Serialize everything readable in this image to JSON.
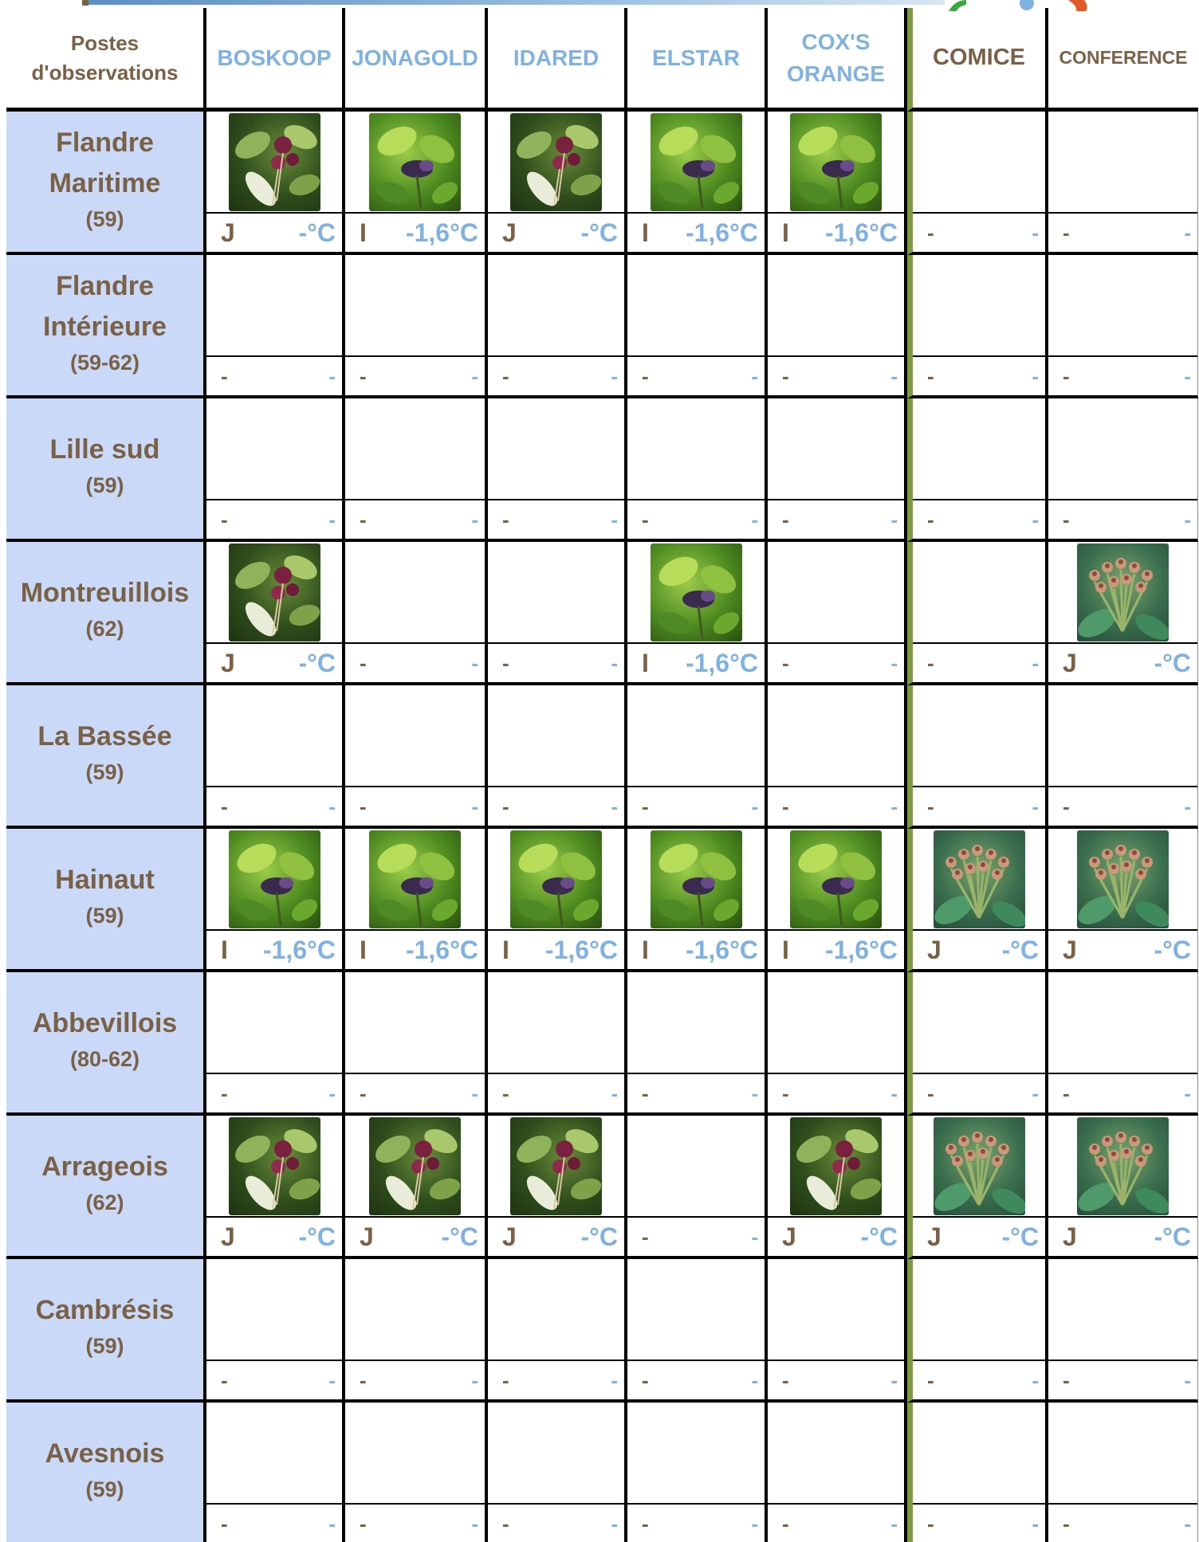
{
  "table": {
    "header": {
      "first": "Postes\nd'observations",
      "varieties": [
        {
          "label": "BOSKOOP",
          "kind": "apple"
        },
        {
          "label": "JONAGOLD",
          "kind": "apple"
        },
        {
          "label": "IDARED",
          "kind": "apple"
        },
        {
          "label": "ELSTAR",
          "kind": "apple"
        },
        {
          "label": "COX'S\nORANGE",
          "kind": "apple"
        },
        {
          "label": "COMICE",
          "kind": "pear"
        },
        {
          "label": "CONFERENCE",
          "kind": "pear"
        }
      ]
    },
    "rows": [
      {
        "name": "Flandre\nMaritime",
        "dept": "(59)",
        "cells": [
          {
            "photo": "apple-red-buds-photo",
            "stage": "J",
            "temp": "-°C"
          },
          {
            "photo": "apple-green-buds-photo",
            "stage": "I",
            "temp": "-1,6°C"
          },
          {
            "photo": "apple-red-buds-photo",
            "stage": "J",
            "temp": "-°C"
          },
          {
            "photo": "apple-green-buds-photo",
            "stage": "I",
            "temp": "-1,6°C"
          },
          {
            "photo": "apple-green-buds-photo",
            "stage": "I",
            "temp": "-1,6°C"
          },
          {
            "photo": "",
            "stage": "-",
            "temp": "-"
          },
          {
            "photo": "",
            "stage": "-",
            "temp": "-"
          }
        ]
      },
      {
        "name": "Flandre\nIntérieure",
        "dept": "(59-62)",
        "cells": [
          {
            "photo": "",
            "stage": "-",
            "temp": "-"
          },
          {
            "photo": "",
            "stage": "-",
            "temp": "-"
          },
          {
            "photo": "",
            "stage": "-",
            "temp": "-"
          },
          {
            "photo": "",
            "stage": "-",
            "temp": "-"
          },
          {
            "photo": "",
            "stage": "-",
            "temp": "-"
          },
          {
            "photo": "",
            "stage": "-",
            "temp": "-"
          },
          {
            "photo": "",
            "stage": "-",
            "temp": "-"
          }
        ]
      },
      {
        "name": "Lille sud",
        "dept": "(59)",
        "cells": [
          {
            "photo": "",
            "stage": "-",
            "temp": "-"
          },
          {
            "photo": "",
            "stage": "-",
            "temp": "-"
          },
          {
            "photo": "",
            "stage": "-",
            "temp": "-"
          },
          {
            "photo": "",
            "stage": "-",
            "temp": "-"
          },
          {
            "photo": "",
            "stage": "-",
            "temp": "-"
          },
          {
            "photo": "",
            "stage": "-",
            "temp": "-"
          },
          {
            "photo": "",
            "stage": "-",
            "temp": "-"
          }
        ]
      },
      {
        "name": "Montreuillois",
        "dept": "(62)",
        "cells": [
          {
            "photo": "apple-red-buds-photo",
            "stage": "J",
            "temp": "-°C"
          },
          {
            "photo": "",
            "stage": "-",
            "temp": "-"
          },
          {
            "photo": "",
            "stage": "-",
            "temp": "-"
          },
          {
            "photo": "apple-green-buds-photo",
            "stage": "I",
            "temp": "-1,6°C"
          },
          {
            "photo": "",
            "stage": "-",
            "temp": "-"
          },
          {
            "photo": "",
            "stage": "-",
            "temp": "-"
          },
          {
            "photo": "pear-buds-photo",
            "stage": "J",
            "temp": "-°C"
          }
        ]
      },
      {
        "name": "La Bassée",
        "dept": "(59)",
        "cells": [
          {
            "photo": "",
            "stage": "-",
            "temp": "-"
          },
          {
            "photo": "",
            "stage": "-",
            "temp": "-"
          },
          {
            "photo": "",
            "stage": "-",
            "temp": "-"
          },
          {
            "photo": "",
            "stage": "-",
            "temp": "-"
          },
          {
            "photo": "",
            "stage": "-",
            "temp": "-"
          },
          {
            "photo": "",
            "stage": "-",
            "temp": "-"
          },
          {
            "photo": "",
            "stage": "-",
            "temp": "-"
          }
        ]
      },
      {
        "name": "Hainaut",
        "dept": "(59)",
        "cells": [
          {
            "photo": "apple-green-buds-photo",
            "stage": "I",
            "temp": "-1,6°C"
          },
          {
            "photo": "apple-green-buds-photo",
            "stage": "I",
            "temp": "-1,6°C"
          },
          {
            "photo": "apple-green-buds-photo",
            "stage": "I",
            "temp": "-1,6°C"
          },
          {
            "photo": "apple-green-buds-photo",
            "stage": "I",
            "temp": "-1,6°C"
          },
          {
            "photo": "apple-green-buds-photo",
            "stage": "I",
            "temp": "-1,6°C"
          },
          {
            "photo": "pear-buds-photo",
            "stage": "J",
            "temp": "-°C"
          },
          {
            "photo": "pear-buds-photo",
            "stage": "J",
            "temp": "-°C"
          }
        ]
      },
      {
        "name": "Abbevillois",
        "dept": "(80-62)",
        "cells": [
          {
            "photo": "",
            "stage": "-",
            "temp": "-"
          },
          {
            "photo": "",
            "stage": "-",
            "temp": "-"
          },
          {
            "photo": "",
            "stage": "-",
            "temp": "-"
          },
          {
            "photo": "",
            "stage": "-",
            "temp": "-"
          },
          {
            "photo": "",
            "stage": "-",
            "temp": "-"
          },
          {
            "photo": "",
            "stage": "-",
            "temp": "-"
          },
          {
            "photo": "",
            "stage": "-",
            "temp": "-"
          }
        ]
      },
      {
        "name": "Arrageois",
        "dept": "(62)",
        "cells": [
          {
            "photo": "apple-red-buds-photo",
            "stage": "J",
            "temp": "-°C"
          },
          {
            "photo": "apple-red-buds-photo",
            "stage": "J",
            "temp": "-°C"
          },
          {
            "photo": "apple-red-buds-photo",
            "stage": "J",
            "temp": "-°C"
          },
          {
            "photo": "",
            "stage": "-",
            "temp": "-"
          },
          {
            "photo": "apple-red-buds-photo",
            "stage": "J",
            "temp": "-°C"
          },
          {
            "photo": "pear-buds-photo",
            "stage": "J",
            "temp": "-°C"
          },
          {
            "photo": "pear-buds-photo",
            "stage": "J",
            "temp": "-°C"
          }
        ]
      },
      {
        "name": "Cambrésis",
        "dept": "(59)",
        "cells": [
          {
            "photo": "",
            "stage": "-",
            "temp": "-"
          },
          {
            "photo": "",
            "stage": "-",
            "temp": "-"
          },
          {
            "photo": "",
            "stage": "-",
            "temp": "-"
          },
          {
            "photo": "",
            "stage": "-",
            "temp": "-"
          },
          {
            "photo": "",
            "stage": "-",
            "temp": "-"
          },
          {
            "photo": "",
            "stage": "-",
            "temp": "-"
          },
          {
            "photo": "",
            "stage": "-",
            "temp": "-"
          }
        ]
      },
      {
        "name": "Avesnois",
        "dept": "(59)",
        "cells": [
          {
            "photo": "",
            "stage": "-",
            "temp": "-"
          },
          {
            "photo": "",
            "stage": "-",
            "temp": "-"
          },
          {
            "photo": "",
            "stage": "-",
            "temp": "-"
          },
          {
            "photo": "",
            "stage": "-",
            "temp": "-"
          },
          {
            "photo": "",
            "stage": "-",
            "temp": "-"
          },
          {
            "photo": "",
            "stage": "-",
            "temp": "-"
          },
          {
            "photo": "",
            "stage": "-",
            "temp": "-"
          }
        ]
      }
    ]
  },
  "colors": {
    "station_bg": "#c9d9f7",
    "brown_text": "#7a6146",
    "blue_text": "#7fb2e0",
    "pear_separator": "#7e9a3e"
  }
}
